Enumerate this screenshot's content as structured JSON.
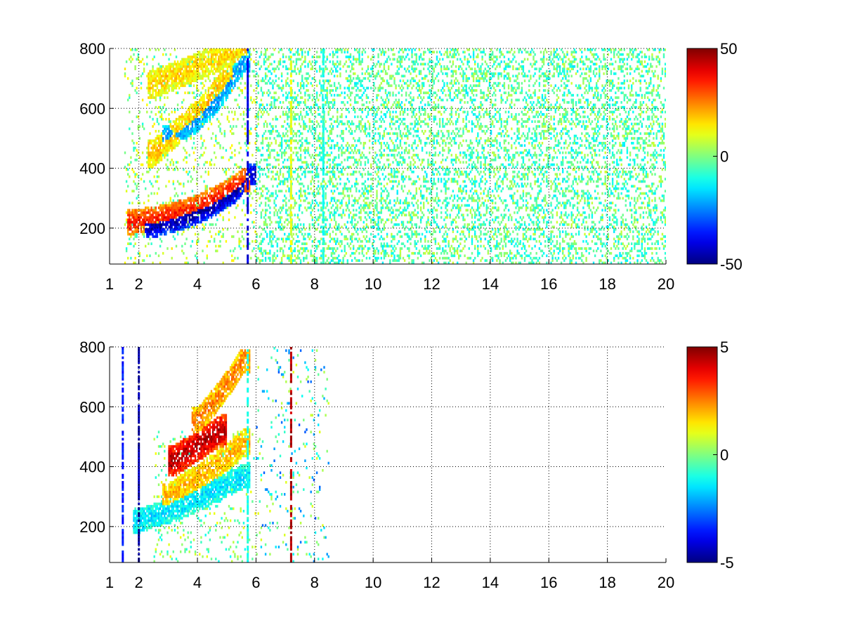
{
  "chart_data": [
    {
      "type": "heatmap",
      "title": "",
      "xlabel": "",
      "ylabel": "",
      "xlim": [
        1,
        20
      ],
      "ylim": [
        80,
        800
      ],
      "xticks": [
        1,
        2,
        4,
        6,
        8,
        10,
        12,
        14,
        16,
        18,
        20
      ],
      "yticks": [
        200,
        400,
        600,
        800
      ],
      "grid": true,
      "colormap": "jet",
      "colorbar": {
        "min": -50,
        "max": 50,
        "ticks": [
          50,
          0,
          -50
        ]
      },
      "features": [
        {
          "kind": "band",
          "x": [
            1.8,
            3.0,
            4.0,
            5.0,
            5.6
          ],
          "y": [
            220,
            240,
            270,
            320,
            360
          ],
          "value": 35,
          "width": 35
        },
        {
          "kind": "band",
          "x": [
            2.4,
            3.5,
            4.5,
            5.3,
            5.8
          ],
          "y": [
            200,
            230,
            270,
            320,
            380
          ],
          "value": -45,
          "width": 30
        },
        {
          "kind": "band",
          "x": [
            3.0,
            4.0,
            4.8,
            5.6
          ],
          "y": [
            500,
            560,
            640,
            760
          ],
          "value": -22,
          "width": 35
        },
        {
          "kind": "band",
          "x": [
            2.5,
            3.3,
            4.2,
            5.0
          ],
          "y": [
            450,
            520,
            600,
            700
          ],
          "value": 18,
          "width": 40
        },
        {
          "kind": "band",
          "x": [
            2.5,
            3.5,
            4.5,
            5.5
          ],
          "y": [
            680,
            720,
            760,
            800
          ],
          "value": 16,
          "width": 40
        }
      ],
      "vertical_lines": [
        {
          "x": 5.72,
          "value": -40
        },
        {
          "x": 7.2,
          "value": 10
        },
        {
          "x": 8.3,
          "value": -10
        }
      ],
      "background": {
        "x_range": [
          6,
          20
        ],
        "value_range": [
          -15,
          8
        ],
        "density": 0.3
      }
    },
    {
      "type": "heatmap",
      "title": "",
      "xlabel": "",
      "ylabel": "",
      "xlim": [
        1,
        20
      ],
      "ylim": [
        80,
        800
      ],
      "xticks": [
        1,
        2,
        4,
        6,
        8,
        10,
        12,
        14,
        16,
        18,
        20
      ],
      "yticks": [
        200,
        400,
        600,
        800
      ],
      "grid": true,
      "colormap": "jet",
      "colorbar": {
        "min": -5,
        "max": 5,
        "ticks": [
          5,
          0,
          -5
        ]
      },
      "features": [
        {
          "kind": "band",
          "x": [
            2.0,
            3.0,
            4.0,
            5.0,
            5.6
          ],
          "y": [
            220,
            250,
            290,
            340,
            370
          ],
          "value": -1.5,
          "width": 35
        },
        {
          "kind": "band",
          "x": [
            3.0,
            4.0,
            5.0,
            5.6
          ],
          "y": [
            300,
            360,
            430,
            480
          ],
          "value": 2.0,
          "width": 40
        },
        {
          "kind": "band",
          "x": [
            3.2,
            4.0,
            4.8
          ],
          "y": [
            420,
            470,
            520
          ],
          "value": 4.5,
          "width": 45
        },
        {
          "kind": "band",
          "x": [
            4.0,
            4.6,
            5.2,
            5.6
          ],
          "y": [
            550,
            620,
            700,
            760
          ],
          "value": 2.5,
          "width": 40
        }
      ],
      "vertical_lines": [
        {
          "x": 1.45,
          "value": -3.5
        },
        {
          "x": 2.0,
          "value": -4.5
        },
        {
          "x": 5.72,
          "value": -1
        },
        {
          "x": 7.2,
          "value": 4.5
        }
      ],
      "background": {
        "x_range": [
          6,
          8.5
        ],
        "value_range": [
          -3,
          1
        ],
        "density": 0.05
      }
    }
  ]
}
